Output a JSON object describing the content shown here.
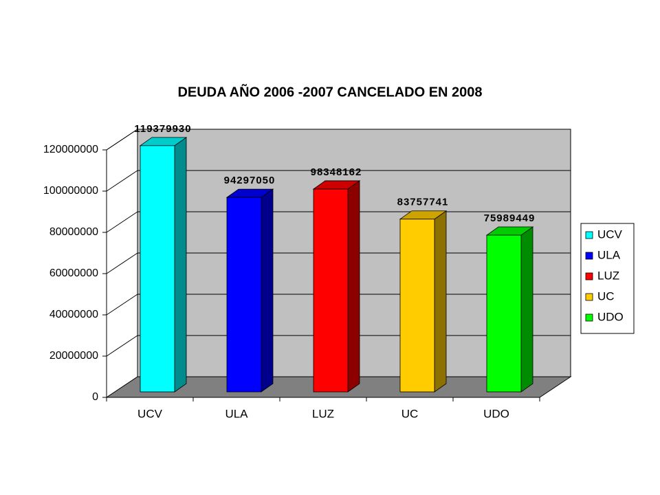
{
  "chart_data": {
    "type": "bar",
    "title": "DEUDA AÑO 2006 -2007 CANCELADO EN 2008",
    "categories": [
      "UCV",
      "ULA",
      "LUZ",
      "UC",
      "UDO"
    ],
    "values": [
      119379930,
      94297050,
      98348162,
      83757741,
      75989449
    ],
    "colors": [
      "#00ffff",
      "#0000ff",
      "#ff0000",
      "#ffcc00",
      "#00ff00"
    ],
    "ylim": [
      0,
      120000000
    ],
    "yticks": [
      0,
      20000000,
      40000000,
      60000000,
      80000000,
      100000000,
      120000000
    ],
    "grid": true,
    "legend": "right"
  }
}
